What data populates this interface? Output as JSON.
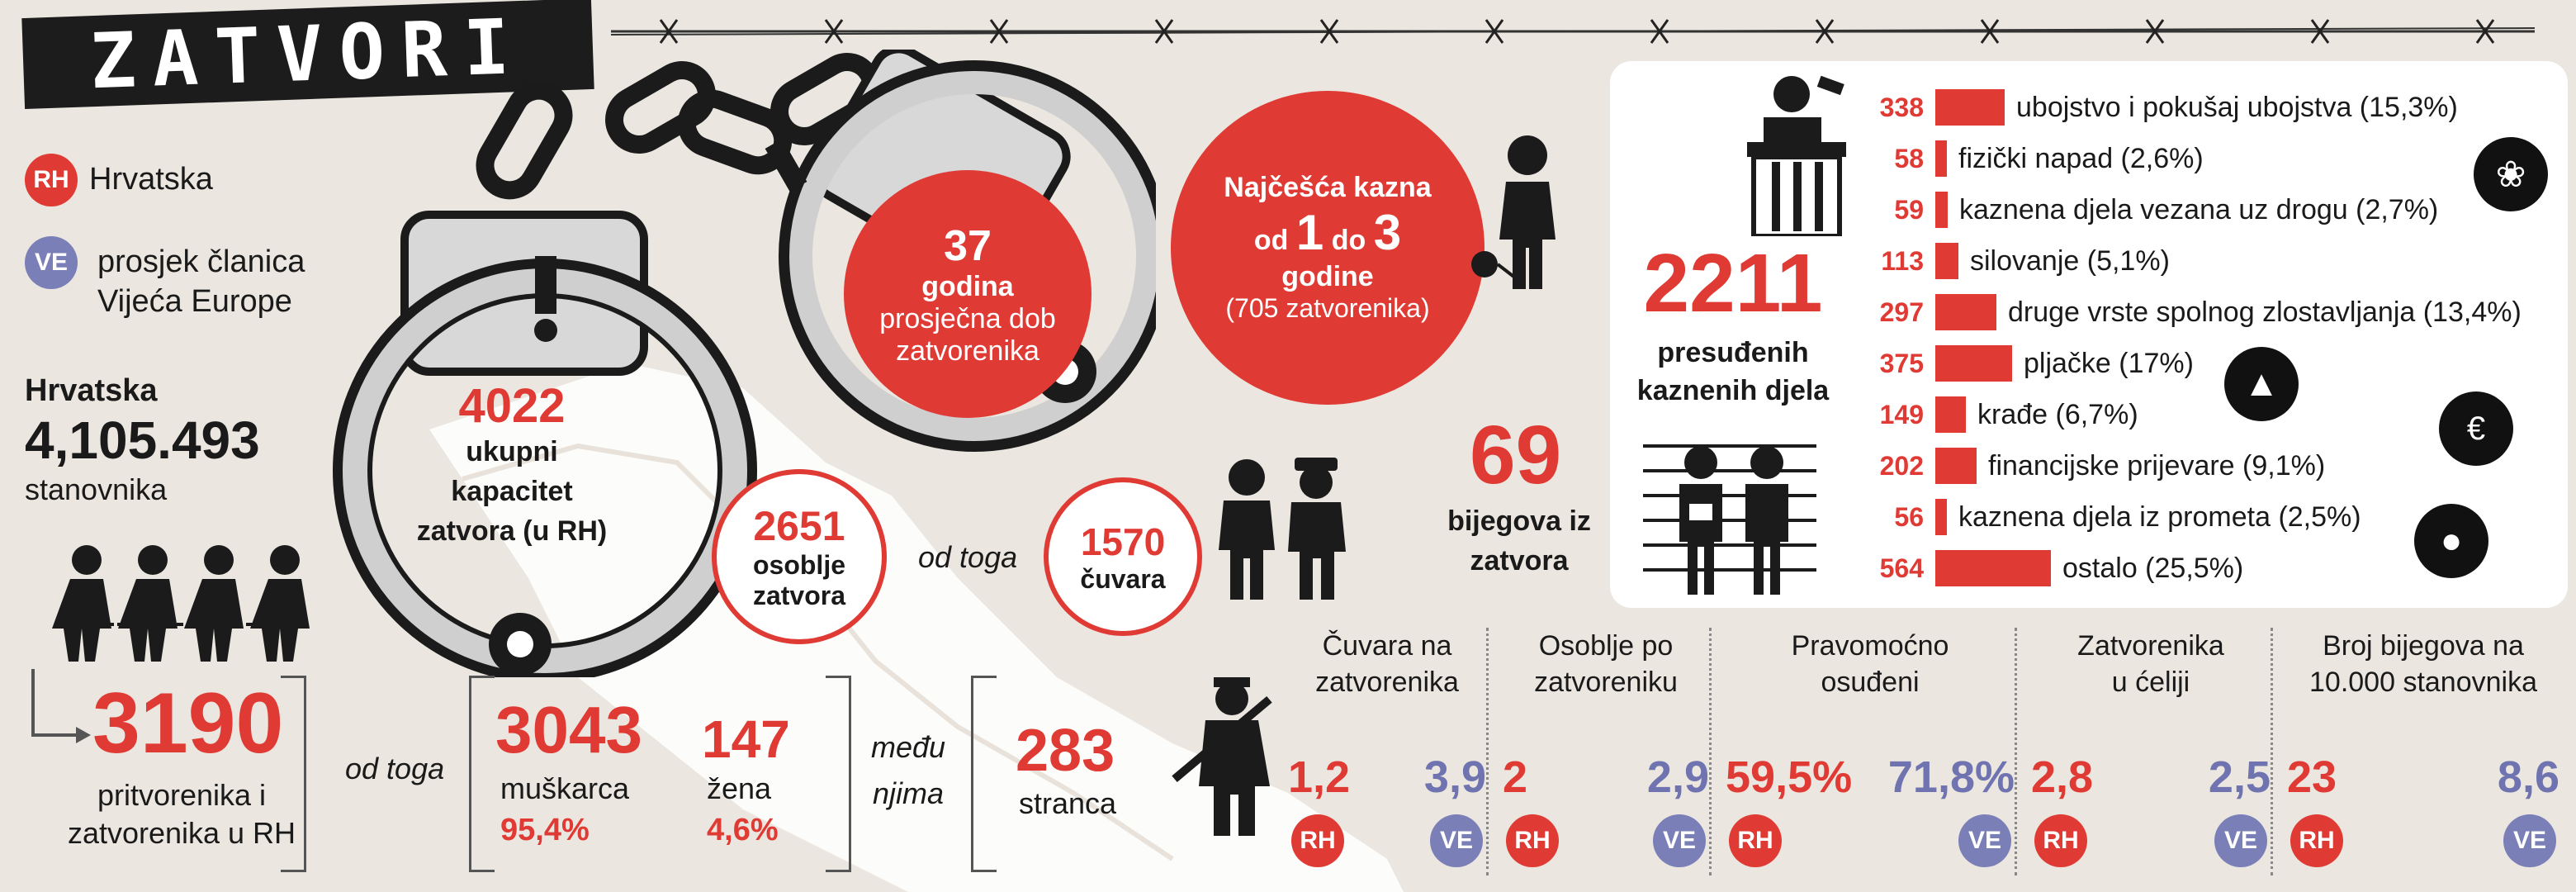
{
  "title": "ZATVORI",
  "legend": {
    "rh_badge": "RH",
    "rh_label": "Hrvatska",
    "ve_badge": "VE",
    "ve_label_line1": "prosjek članica",
    "ve_label_line2": "Vijeća Europe"
  },
  "population": {
    "label": "Hrvatska",
    "value": "4,105.493",
    "unit": "stanovnika"
  },
  "capacity": {
    "value": "4022",
    "line1": "ukupni",
    "line2": "kapacitet",
    "line3": "zatvora (u RH)"
  },
  "age": {
    "value": "37",
    "line1": "godina",
    "line2": "prosječna dob",
    "line3": "zatvorenika"
  },
  "sentence": {
    "line1": "Najčešća kazna",
    "od": "od",
    "from": "1",
    "do": "do",
    "to": "3",
    "line3": "godine",
    "line4": "(705 zatvorenika)"
  },
  "staff": {
    "value": "2651",
    "line1": "osoblje",
    "line2": "zatvora",
    "od_toga": "od toga",
    "guards_value": "1570",
    "guards_label": "čuvara"
  },
  "escapes": {
    "value": "69",
    "line1": "bijegova iz",
    "line2": "zatvora"
  },
  "prisoners": {
    "value": "3190",
    "line1": "pritvorenika i",
    "line2": "zatvorenika u RH",
    "od_toga": "od toga",
    "men_value": "3043",
    "men_label": "muškarca",
    "men_pct": "95,4%",
    "women_value": "147",
    "women_label": "žena",
    "women_pct": "4,6%",
    "medu_line1": "među",
    "medu_line2": "njima",
    "foreign_value": "283",
    "foreign_label": "stranca"
  },
  "convictions": {
    "value": "2211",
    "line1": "presuđenih",
    "line2": "kaznenih djela"
  },
  "crimes": [
    {
      "value": 338,
      "label": "ubojstvo i pokušaj ubojstva (15,3%)"
    },
    {
      "value": 58,
      "label": "fizički napad (2,6%)"
    },
    {
      "value": 59,
      "label": "kaznena djela vezana uz drogu (2,7%)"
    },
    {
      "value": 113,
      "label": "silovanje (5,1%)"
    },
    {
      "value": 297,
      "label": "druge vrste spolnog zlostavljanja (13,4%)"
    },
    {
      "value": 375,
      "label": "pljačke (17%)"
    },
    {
      "value": 149,
      "label": "krađe (6,7%)"
    },
    {
      "value": 202,
      "label": "financijske prijevare (9,1%)"
    },
    {
      "value": 56,
      "label": "kaznena djela iz prometa (2,5%)"
    },
    {
      "value": 564,
      "label": "ostalo (25,5%)"
    }
  ],
  "stats": [
    {
      "title1": "Čuvara na",
      "title2": "zatvorenika",
      "rh": "1,2",
      "ve": "3,9"
    },
    {
      "title1": "Osoblje po",
      "title2": "zatvoreniku",
      "rh": "2",
      "ve": "2,9"
    },
    {
      "title1": "Pravomoćno",
      "title2": "osuđeni",
      "rh": "59,5%",
      "ve": "71,8%"
    },
    {
      "title1": "Zatvorenika",
      "title2": "u ćeliji",
      "rh": "2,8",
      "ve": "2,5"
    },
    {
      "title1": "Broj bijegova na",
      "title2": "10.000 stanovnika",
      "rh": "23",
      "ve": "8,6"
    }
  ],
  "colors": {
    "red": "#e03a34",
    "blue": "#7a7fb8",
    "dark": "#1a1a1a",
    "background": "#ebe6df"
  },
  "icons": [
    "handcuffs-icon",
    "barbed-wire-icon",
    "judge-icon",
    "cannabis-icon",
    "pistol-icon",
    "money-bag-icon",
    "thief-icon",
    "guard-icon",
    "prisoners-chain-icon",
    "soldier-rifle-icon",
    "prisoner-ball-icon",
    "lineup-icon"
  ]
}
